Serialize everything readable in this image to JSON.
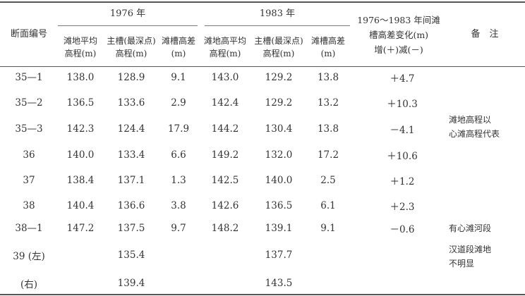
{
  "header": {
    "section_label": "断面编号",
    "group_1976": "1976 年",
    "group_1983": "1983 年",
    "change_line1": "1976～1983 年间滩",
    "change_line2": "槽高差变化(m)",
    "change_line3": "增(＋)减(－)",
    "remark": "备　注",
    "c1_line1": "滩地平均",
    "c1_line2": "高程(m)",
    "c2_line1": "主槽(最深点)",
    "c2_line2": "高程(m)",
    "c3_line1": "滩槽高差",
    "c3_line2": "(m)",
    "c4_line1": "滩地高平均",
    "c4_line2": "高程(m)",
    "c5_line1": "主槽(最深点)",
    "c5_line2": "高程(m)",
    "c6_line1": "滩槽高差",
    "c6_line2": "(m)"
  },
  "rows": [
    {
      "section": "35—1",
      "bank76": "138.0",
      "main76": "128.9",
      "diff76": "9.1",
      "bank83": "143.0",
      "main83": "129.2",
      "diff83": "13.8",
      "change": "＋4.7"
    },
    {
      "section": "35—2",
      "bank76": "136.5",
      "main76": "133.6",
      "diff76": "2.9",
      "bank83": "142.4",
      "main83": "129.2",
      "diff83": "13.2",
      "change": "＋10.3"
    },
    {
      "section": "35—3",
      "bank76": "142.3",
      "main76": "124.4",
      "diff76": "17.9",
      "bank83": "144.2",
      "main83": "130.4",
      "diff83": "13.8",
      "change": "－4.1"
    },
    {
      "section": "36",
      "bank76": "140.0",
      "main76": "133.4",
      "diff76": "6.6",
      "bank83": "149.2",
      "main83": "132.0",
      "diff83": "17.2",
      "change": "＋10.6"
    },
    {
      "section": "37",
      "bank76": "138.4",
      "main76": "137.1",
      "diff76": "1.3",
      "bank83": "142.5",
      "main83": "140.0",
      "diff83": "2.5",
      "change": "＋1.2"
    },
    {
      "section": "38",
      "bank76": "140.4",
      "main76": "136.6",
      "diff76": "3.8",
      "bank83": "142.6",
      "main83": "136.5",
      "diff83": "6.1",
      "change": "＋2.3"
    },
    {
      "section": "38—1",
      "bank76": "147.2",
      "main76": "137.5",
      "diff76": "9.7",
      "bank83": "148.2",
      "main83": "139.1",
      "diff83": "9.1",
      "change": "－0.6"
    },
    {
      "section": "39 (左)",
      "bank76": "",
      "main76": "135.4",
      "diff76": "",
      "bank83": "",
      "main83": "137.7",
      "diff83": "",
      "change": ""
    },
    {
      "section": "(右)",
      "bank76": "",
      "main76": "139.4",
      "diff76": "",
      "bank83": "",
      "main83": "143.5",
      "diff83": "",
      "change": ""
    }
  ],
  "notes": {
    "note1_line1": "滩地高程以",
    "note1_line2": "心滩高程代表",
    "note2": "有心滩河段",
    "note3_line1": "汉道段滩地",
    "note3_line2": "不明显"
  }
}
